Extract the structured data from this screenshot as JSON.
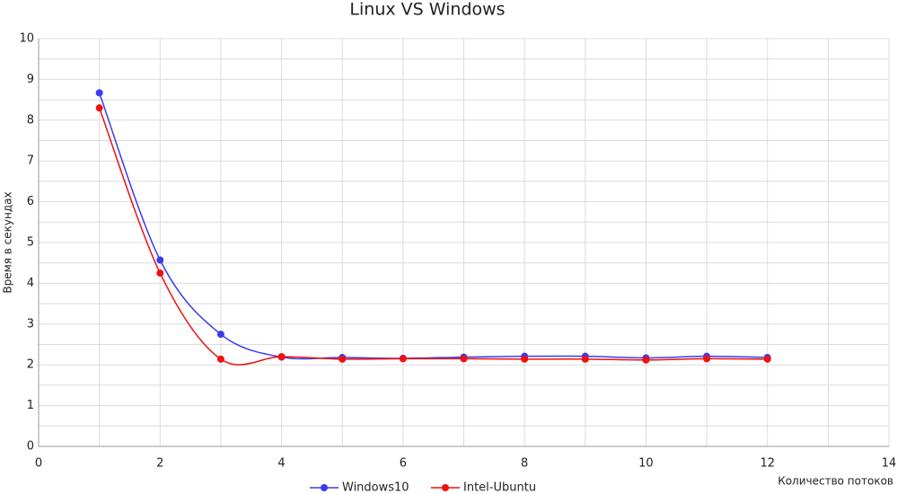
{
  "chart_data": {
    "type": "line",
    "title": "Linux VS Windows",
    "x_label": "Количество потоков",
    "y_label": "Время в секундах",
    "x": [
      1,
      2,
      3,
      4,
      5,
      6,
      7,
      8,
      9,
      10,
      11,
      12
    ],
    "series": [
      {
        "name": "Windows10",
        "color": "#3b3bf0",
        "values": [
          8.67,
          4.57,
          2.75,
          2.19,
          2.18,
          2.16,
          2.19,
          2.21,
          2.21,
          2.17,
          2.21,
          2.18
        ]
      },
      {
        "name": "Intel-Ubuntu",
        "color": "#ee1111",
        "values": [
          8.3,
          4.25,
          2.14,
          2.2,
          2.14,
          2.15,
          2.15,
          2.14,
          2.14,
          2.12,
          2.15,
          2.14
        ]
      }
    ],
    "xlim": [
      0,
      14
    ],
    "xticks": [
      0,
      2,
      4,
      6,
      8,
      10,
      12,
      14
    ],
    "ylim": [
      0,
      10
    ],
    "yticks": [
      0,
      1,
      2,
      3,
      4,
      5,
      6,
      7,
      8,
      9,
      10
    ],
    "grid": true,
    "minor_grid": true,
    "smooth": true,
    "legend": "bottom"
  }
}
